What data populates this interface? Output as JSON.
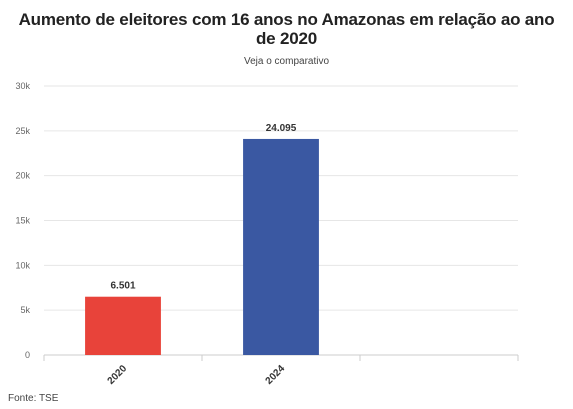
{
  "chart_data": {
    "type": "bar",
    "title": "Aumento de eleitores com 16 anos no Amazonas em relação ao ano de 2020",
    "subtitle": "Veja o comparativo",
    "categories": [
      "2020",
      "2024"
    ],
    "values": [
      6501,
      24095
    ],
    "data_labels": [
      "6.501",
      "24.095"
    ],
    "colors": [
      "#e8433a",
      "#3a58a2"
    ],
    "ylim": [
      0,
      30000
    ],
    "yticks": [
      0,
      5000,
      10000,
      15000,
      20000,
      25000,
      30000
    ],
    "ytick_labels": [
      "0",
      "5k",
      "10k",
      "15k",
      "20k",
      "25k",
      "30k"
    ],
    "grid": true,
    "source": "Fonte: TSE"
  }
}
